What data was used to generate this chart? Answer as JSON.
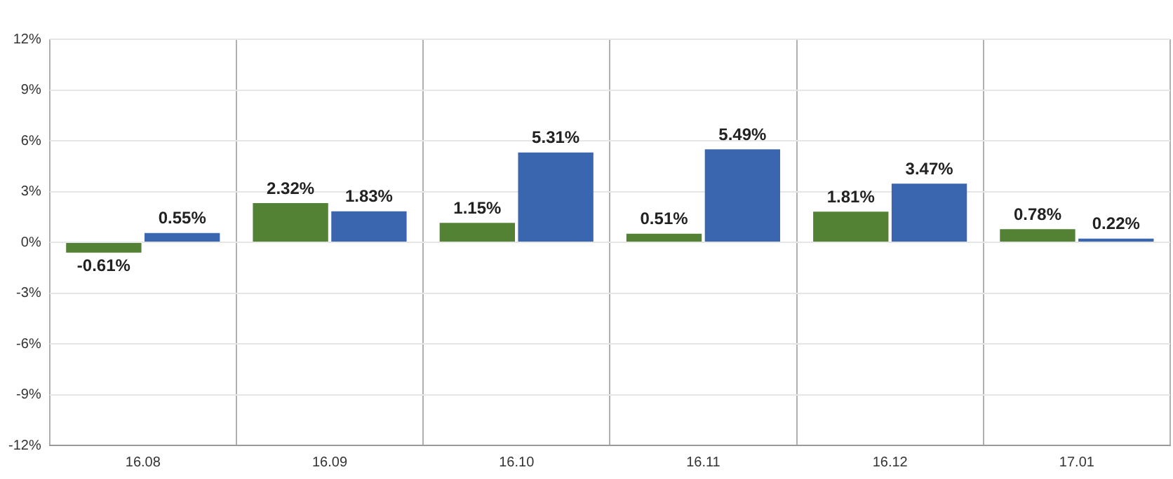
{
  "chart_data": {
    "type": "bar",
    "categories": [
      "16.08",
      "16.09",
      "16.10",
      "16.11",
      "16.12",
      "17.01"
    ],
    "series": [
      {
        "color": "#548235",
        "values": [
          -0.61,
          2.32,
          1.15,
          0.51,
          1.81,
          0.78
        ],
        "value_labels": [
          "-0.61%",
          "2.32%",
          "1.15%",
          "0.51%",
          "1.81%",
          "0.78%"
        ]
      },
      {
        "color": "#3a66b0",
        "values": [
          0.55,
          1.83,
          5.31,
          5.49,
          3.47,
          0.22
        ],
        "value_labels": [
          "0.55%",
          "1.83%",
          "5.31%",
          "5.49%",
          "3.47%",
          "0.22%"
        ]
      }
    ],
    "ylim": [
      -12,
      12
    ],
    "yticks": [
      {
        "value": -12,
        "label": "-12%"
      },
      {
        "value": -9,
        "label": "-9%"
      },
      {
        "value": -6,
        "label": "-6%"
      },
      {
        "value": -3,
        "label": "-3%"
      },
      {
        "value": 0,
        "label": "0%"
      },
      {
        "value": 3,
        "label": "3%"
      },
      {
        "value": 6,
        "label": "6%"
      },
      {
        "value": 9,
        "label": "9%"
      },
      {
        "value": 12,
        "label": "12%"
      }
    ],
    "grid": true
  }
}
